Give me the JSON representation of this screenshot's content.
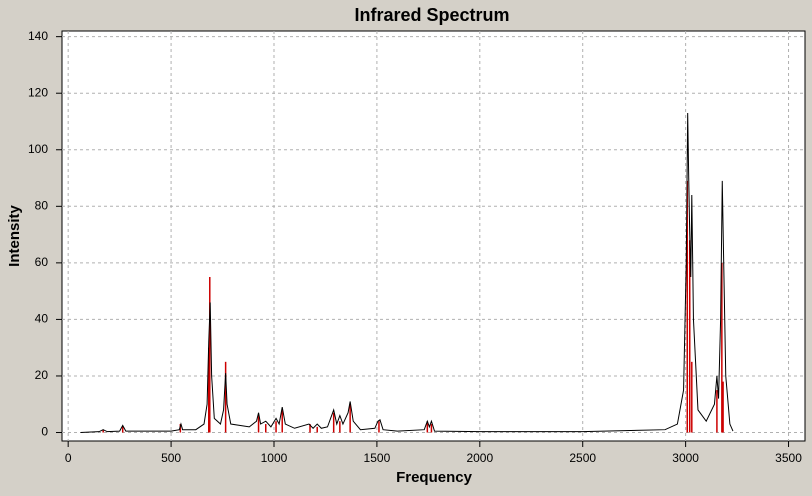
{
  "chart_data": {
    "type": "line",
    "title": "Infrared Spectrum",
    "xlabel": "Frequency",
    "ylabel": "Intensity",
    "xlim": [
      -30,
      3580
    ],
    "ylim": [
      -3,
      142
    ],
    "xticks": [
      0,
      500,
      1000,
      1500,
      2000,
      2500,
      3000,
      3500
    ],
    "yticks": [
      0,
      20,
      40,
      60,
      80,
      100,
      120,
      140
    ],
    "grid": true,
    "series": [
      {
        "type": "line",
        "color": "#000000",
        "x": [
          60,
          150,
          170,
          190,
          250,
          265,
          280,
          500,
          540,
          548,
          556,
          620,
          660,
          675,
          683,
          690,
          697,
          710,
          740,
          755,
          765,
          772,
          790,
          880,
          915,
          925,
          935,
          960,
          985,
          1010,
          1025,
          1040,
          1055,
          1100,
          1170,
          1190,
          1210,
          1230,
          1260,
          1290,
          1305,
          1320,
          1335,
          1360,
          1370,
          1385,
          1420,
          1490,
          1505,
          1515,
          1530,
          1600,
          1730,
          1745,
          1755,
          1765,
          1780,
          2000,
          2500,
          2900,
          2960,
          2990,
          3003,
          3010,
          3015,
          3020,
          3025,
          3030,
          3038,
          3060,
          3100,
          3140,
          3152,
          3160,
          3170,
          3178,
          3185,
          3195,
          3215,
          3230
        ],
        "values": [
          0,
          0.3,
          1,
          0.3,
          0.5,
          2.5,
          0.5,
          0.5,
          1,
          3,
          1,
          1,
          3,
          10,
          32,
          46,
          20,
          5,
          3,
          8,
          21,
          10,
          3,
          2,
          4,
          7,
          3,
          4,
          2,
          5,
          3,
          9,
          3,
          1.5,
          3,
          1.5,
          3,
          1.5,
          2,
          8,
          3,
          6,
          3,
          7,
          11,
          4,
          1,
          1.5,
          4,
          4.5,
          1,
          0.5,
          1,
          4,
          2,
          4,
          0.5,
          0.3,
          0.3,
          1,
          3,
          15,
          60,
          113,
          90,
          70,
          55,
          84,
          40,
          8,
          4,
          10,
          20,
          12,
          40,
          89,
          60,
          20,
          3,
          0.5
        ]
      },
      {
        "type": "stem",
        "color": "#cc0000",
        "x": [
          170,
          265,
          545,
          683,
          688,
          765,
          925,
          960,
          1010,
          1040,
          1175,
          1210,
          1290,
          1320,
          1370,
          1510,
          1745,
          1765,
          3008,
          3020,
          3030,
          3152,
          3176,
          3182
        ],
        "values": [
          1,
          2,
          3,
          30,
          55,
          25,
          6,
          3,
          4,
          8,
          3,
          2,
          7,
          4,
          10,
          4,
          4,
          3,
          89,
          68,
          25,
          15,
          60,
          18
        ]
      }
    ]
  }
}
